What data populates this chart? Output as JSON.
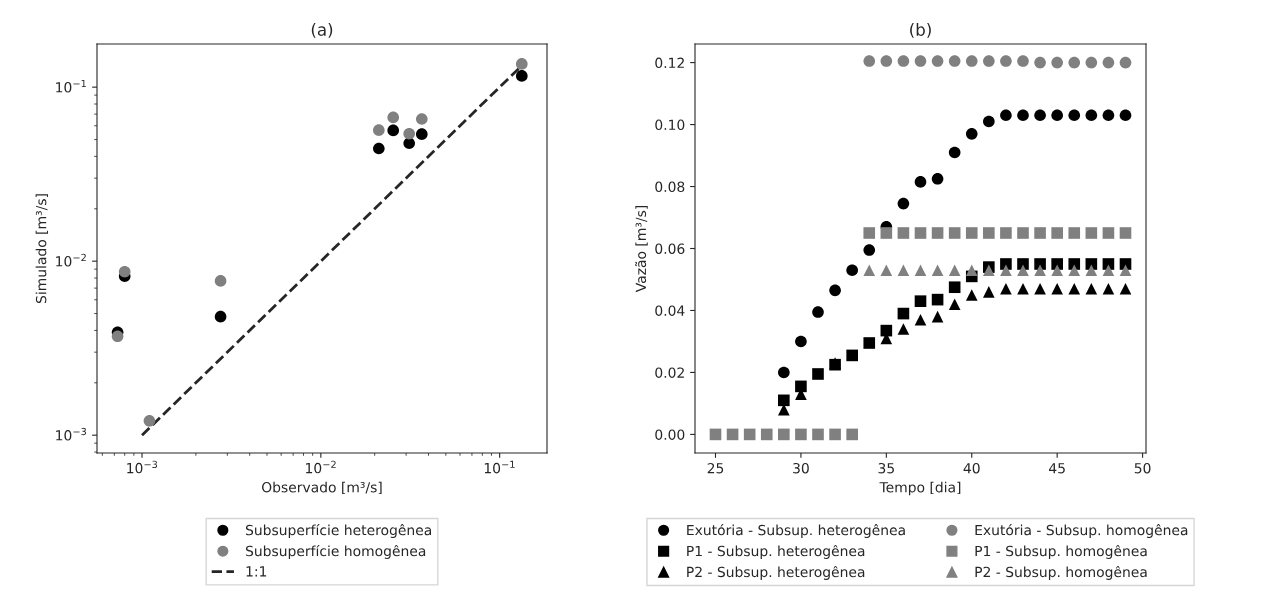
{
  "chart_data": [
    {
      "type": "scatter",
      "title": "(a)",
      "xlabel": "Observado [m³/s]",
      "ylabel": "Simulado [m³/s]",
      "log": "xy",
      "xlim": [
        0.00056,
        0.184
      ],
      "ylim": [
        0.00079,
        0.177
      ],
      "xticks": [
        {
          "value": 0.001,
          "label": "10$^{−3}$"
        },
        {
          "value": 0.01,
          "label": "10$^{−2}$"
        },
        {
          "value": 0.1,
          "label": "10$^{−1}$"
        }
      ],
      "yticks": [
        {
          "value": 0.001,
          "label": "10$^{−3}$"
        },
        {
          "value": 0.01,
          "label": "10$^{−2}$"
        },
        {
          "value": 0.1,
          "label": "10$^{−1}$"
        }
      ],
      "legend": "bottom",
      "grid": false,
      "series": [
        {
          "name": "Subsuperfície heterogênea",
          "color": "#000000",
          "marker": "circle",
          "x": [
            0.00073,
            0.0008,
            0.00275,
            0.0211,
            0.0254,
            0.0312,
            0.0367,
            0.133
          ],
          "values": [
            0.0039,
            0.0082,
            0.0048,
            0.0444,
            0.0564,
            0.0476,
            0.0537,
            0.116
          ]
        },
        {
          "name": "Subsuperfície homogênea",
          "color": "#808080",
          "marker": "circle",
          "x": [
            0.00073,
            0.0008,
            0.0011,
            0.00275,
            0.0211,
            0.0254,
            0.0312,
            0.0367,
            0.133
          ],
          "values": [
            0.0037,
            0.0087,
            0.00121,
            0.0077,
            0.0566,
            0.067,
            0.054,
            0.0656,
            0.136
          ]
        },
        {
          "name": "1:1",
          "type": "line",
          "color": "#262626",
          "line_style": "dashed",
          "marker": "none",
          "x": [
            0.001,
            0.14
          ],
          "values": [
            0.001,
            0.14
          ]
        }
      ]
    },
    {
      "type": "scatter",
      "title": "(b)",
      "xlabel": "Tempo [dia]",
      "ylabel": "Vazão [m³/s]",
      "xlim": [
        23.8,
        50.2
      ],
      "ylim": [
        -0.006,
        0.126
      ],
      "xticks": [
        25,
        30,
        35,
        40,
        45,
        50
      ],
      "yticks": [
        {
          "value": 0,
          "label": "0.00"
        },
        {
          "value": 0.02,
          "label": "0.02"
        },
        {
          "value": 0.04,
          "label": "0.04"
        },
        {
          "value": 0.06,
          "label": "0.06"
        },
        {
          "value": 0.08,
          "label": "0.08"
        },
        {
          "value": 0.1,
          "label": "0.10"
        },
        {
          "value": 0.12,
          "label": "0.12"
        }
      ],
      "legend": "bottom",
      "grid": false,
      "x": [
        25,
        26,
        27,
        28,
        29,
        30,
        31,
        32,
        33,
        34,
        35,
        36,
        37,
        38,
        39,
        40,
        41,
        42,
        43,
        44,
        45,
        46,
        47,
        48,
        49
      ],
      "series": [
        {
          "name": "Exutória - Subsup. heterogênea",
          "color": "#000000",
          "marker": "circle",
          "values": [
            null,
            null,
            null,
            null,
            0.02,
            0.03,
            0.0395,
            0.0465,
            0.053,
            0.0595,
            0.067,
            0.0745,
            0.0815,
            0.0825,
            0.091,
            0.097,
            0.101,
            0.103,
            0.103,
            0.103,
            0.103,
            0.103,
            0.103,
            0.103,
            0.103
          ]
        },
        {
          "name": "P1 - Subsup. heterogênea",
          "color": "#000000",
          "marker": "square",
          "values": [
            null,
            null,
            null,
            null,
            0.011,
            0.0155,
            0.0195,
            0.0225,
            0.0255,
            0.0295,
            0.0335,
            0.039,
            0.043,
            0.0435,
            0.0475,
            0.051,
            0.054,
            0.055,
            0.055,
            0.055,
            0.055,
            0.055,
            0.055,
            0.055,
            0.055
          ]
        },
        {
          "name": "P2 - Subsup. heterogênea",
          "color": "#000000",
          "marker": "triangle",
          "values": [
            null,
            null,
            null,
            null,
            0.008,
            0.013,
            null,
            0.023,
            null,
            null,
            0.031,
            0.034,
            0.037,
            0.038,
            0.042,
            0.045,
            0.046,
            0.047,
            0.047,
            0.047,
            0.047,
            0.047,
            0.047,
            0.047,
            0.047
          ]
        },
        {
          "name": "Exutória - Subsup. homogênea",
          "color": "#808080",
          "marker": "circle",
          "values": [
            null,
            null,
            null,
            null,
            null,
            null,
            null,
            null,
            null,
            0.1205,
            0.1205,
            0.1205,
            0.1205,
            0.1205,
            0.1205,
            0.1205,
            0.1205,
            0.1205,
            0.1205,
            0.12,
            0.12,
            0.12,
            0.12,
            0.12,
            0.12
          ]
        },
        {
          "name": "P1 - Subsup. homogênea",
          "color": "#808080",
          "marker": "square",
          "values": [
            0,
            0,
            0,
            0,
            0,
            0,
            0,
            0,
            0,
            0.065,
            0.065,
            0.065,
            0.065,
            0.065,
            0.065,
            0.065,
            0.065,
            0.065,
            0.065,
            0.065,
            0.065,
            0.065,
            0.065,
            0.065,
            0.065
          ]
        },
        {
          "name": "P2 - Subsup. homogênea",
          "color": "#808080",
          "marker": "triangle",
          "values": [
            null,
            null,
            null,
            null,
            null,
            null,
            null,
            null,
            null,
            0.053,
            0.053,
            0.053,
            0.053,
            0.053,
            0.053,
            0.053,
            0.053,
            0.053,
            0.053,
            0.053,
            0.053,
            0.053,
            0.053,
            0.053,
            0.053
          ]
        }
      ]
    }
  ]
}
